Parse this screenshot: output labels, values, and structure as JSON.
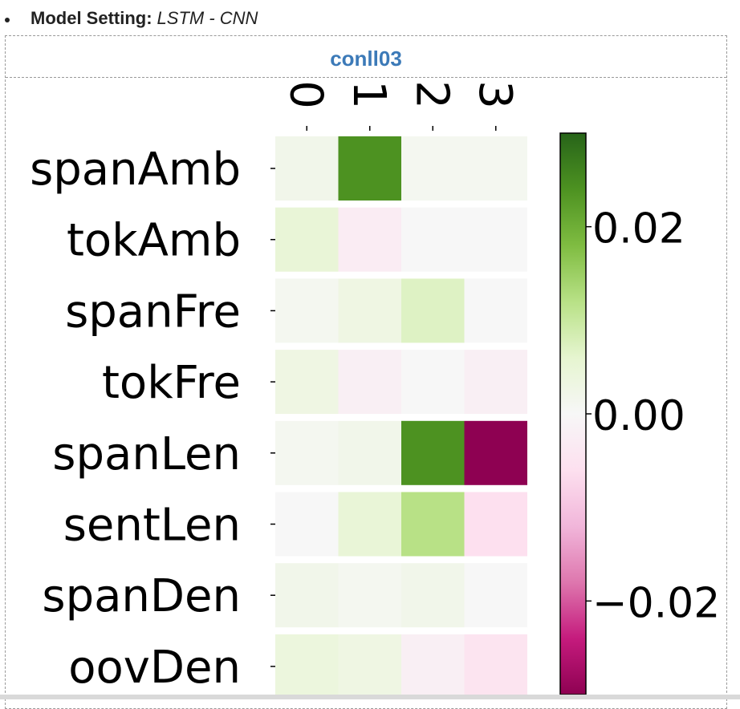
{
  "header": {
    "key": "Model Setting:",
    "value": "LSTM - CNN"
  },
  "panel": {
    "title": "conll03"
  },
  "chart_data": {
    "type": "heatmap",
    "title": "",
    "xlabel": "",
    "ylabel": "",
    "x": [
      "0",
      "1",
      "2",
      "3"
    ],
    "y": [
      "spanAmb",
      "tokAmb",
      "spanFre",
      "tokFre",
      "spanLen",
      "sentLen",
      "spanDen",
      "oovDen"
    ],
    "values": [
      [
        0.002,
        0.024,
        0.001,
        0.001
      ],
      [
        0.005,
        -0.003,
        0.0,
        0.0
      ],
      [
        0.001,
        0.003,
        0.007,
        0.0
      ],
      [
        0.003,
        -0.002,
        0.0,
        -0.002
      ],
      [
        0.001,
        0.002,
        0.024,
        -0.03
      ],
      [
        0.0,
        0.005,
        0.012,
        -0.006
      ],
      [
        0.002,
        0.001,
        0.002,
        0.0
      ],
      [
        0.004,
        0.003,
        -0.002,
        -0.005
      ]
    ],
    "colorbar": {
      "ticks": [
        0.02,
        0.0,
        -0.02
      ],
      "tick_labels": [
        "0.02",
        "0.00",
        "−0.02"
      ],
      "min": -0.03,
      "max": 0.03
    },
    "colormap": "PiYG"
  }
}
